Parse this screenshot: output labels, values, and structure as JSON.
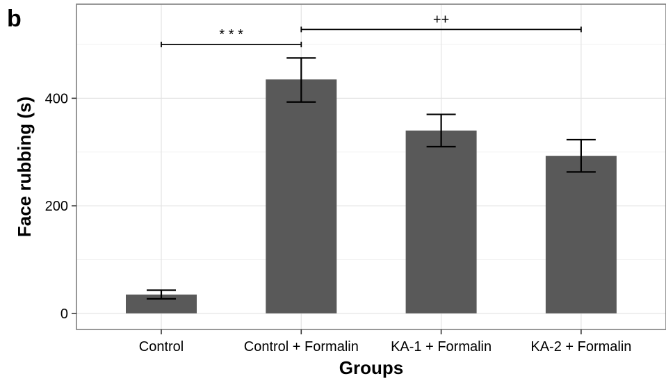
{
  "panel_label": "b",
  "chart_data": {
    "type": "bar",
    "categories": [
      "Control",
      "Control + Formalin",
      "KA-1 + Formalin",
      "KA-2 + Formalin"
    ],
    "values": [
      35,
      435,
      340,
      293
    ],
    "error_low": [
      27,
      393,
      310,
      263
    ],
    "error_high": [
      43,
      475,
      370,
      323
    ],
    "xlabel": "Groups",
    "ylabel": "Face rubbing (s)",
    "yticks": [
      0,
      200,
      400
    ],
    "ylim": [
      -30,
      575
    ],
    "grid": true,
    "bar_color": "#595959",
    "significance": [
      {
        "from": 0,
        "to": 1,
        "label": "* * *",
        "y": 500
      },
      {
        "from": 1,
        "to": 3,
        "label": "++",
        "y": 528
      }
    ]
  }
}
